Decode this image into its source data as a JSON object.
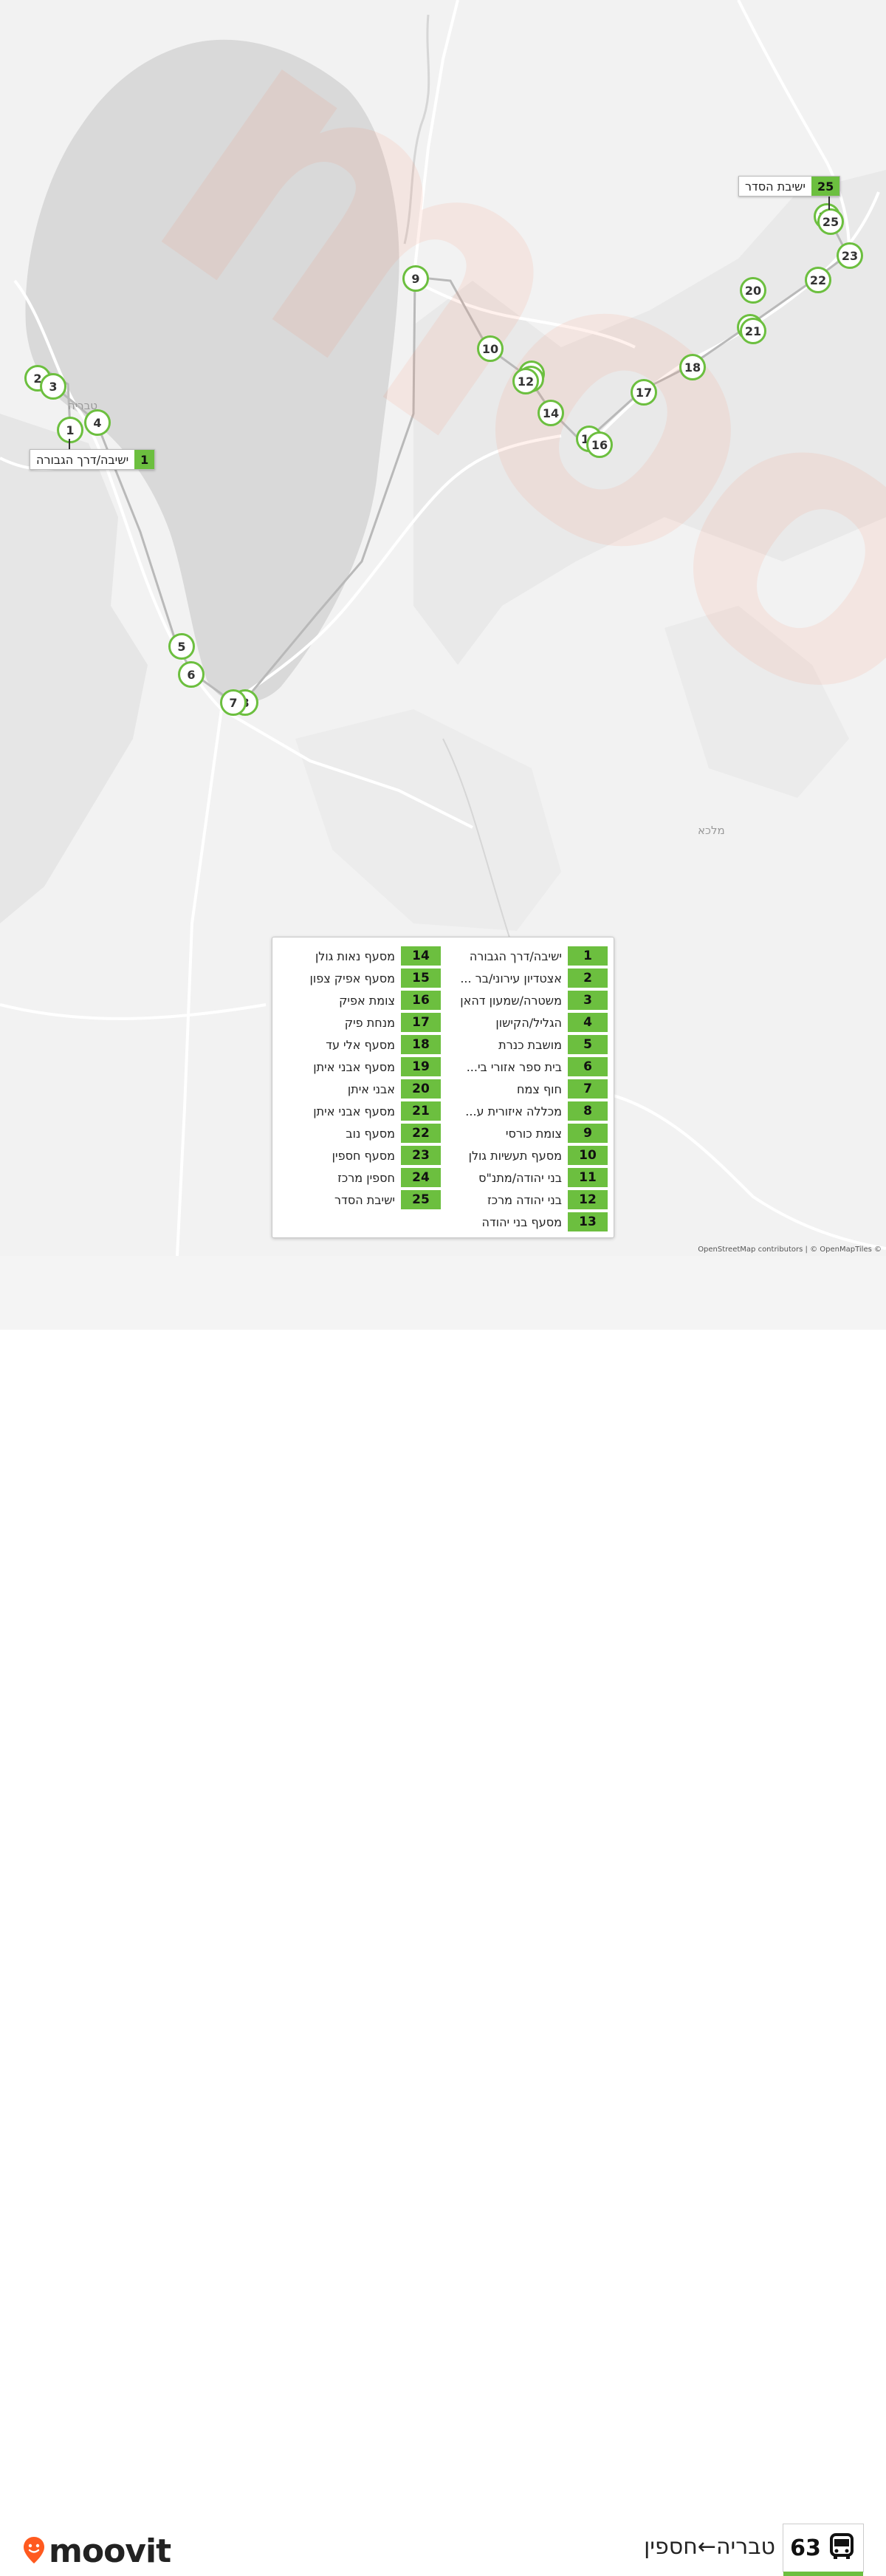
{
  "map": {
    "place_labels": [
      "טבריה",
      "מלכא"
    ],
    "watermark": "moovit"
  },
  "callouts": {
    "start": {
      "number": "1",
      "name": "ישיבה/דרך הגבורה"
    },
    "end": {
      "number": "25",
      "name": "ישיבת הסדר"
    }
  },
  "markers": [
    "1",
    "2",
    "3",
    "4",
    "5",
    "6",
    "7",
    "8",
    "9",
    "10",
    "11",
    "12",
    "13",
    "14",
    "15",
    "16",
    "17",
    "18",
    "19",
    "20",
    "21",
    "22",
    "23",
    "24",
    "25"
  ],
  "legend": {
    "stops": [
      {
        "n": "1",
        "name": "ישיבה/דרך הגבורה"
      },
      {
        "n": "2",
        "name": "אצטדיון עירוני/בר ..."
      },
      {
        "n": "3",
        "name": "משטרה/שמעון דהאן"
      },
      {
        "n": "4",
        "name": "הגליל/הקישון"
      },
      {
        "n": "5",
        "name": "מושבת כנרת"
      },
      {
        "n": "6",
        "name": "בית ספר אזורי בי..."
      },
      {
        "n": "7",
        "name": "חוף צמח"
      },
      {
        "n": "8",
        "name": "מכללה איזורית ע..."
      },
      {
        "n": "9",
        "name": "צומת כורסי"
      },
      {
        "n": "10",
        "name": "מסעף תעשיות גולן"
      },
      {
        "n": "11",
        "name": "בני יהודה/מתנ\"ס"
      },
      {
        "n": "12",
        "name": "בני יהודה מרכז"
      },
      {
        "n": "13",
        "name": "מסעף בני יהודה"
      },
      {
        "n": "14",
        "name": "מסעף נאות גולן"
      },
      {
        "n": "15",
        "name": "מסעף אפיק צפון"
      },
      {
        "n": "16",
        "name": "צומת אפיק"
      },
      {
        "n": "17",
        "name": "מנחת פיק"
      },
      {
        "n": "18",
        "name": "מסעף אלי עד"
      },
      {
        "n": "19",
        "name": "מסעף אבני איתן"
      },
      {
        "n": "20",
        "name": "אבני איתן"
      },
      {
        "n": "21",
        "name": "מסעף אבני איתן"
      },
      {
        "n": "22",
        "name": "מסעף נוב"
      },
      {
        "n": "23",
        "name": "מסעף חספין"
      },
      {
        "n": "24",
        "name": "חספין מרכז"
      },
      {
        "n": "25",
        "name": "ישיבת הסדר"
      }
    ]
  },
  "attribution": "OpenStreetMap contributors | © OpenMapTiles ©",
  "footer": {
    "route_number": "63",
    "route_title": "טבריה←חספין",
    "brand": "moovit",
    "icons": {
      "bus": "bus-icon",
      "brand_pin": "moovit-pin-icon"
    }
  },
  "colors": {
    "accent": "#6cbf3f",
    "lake": "#d9d9d9",
    "land": "#f2f2f2"
  }
}
